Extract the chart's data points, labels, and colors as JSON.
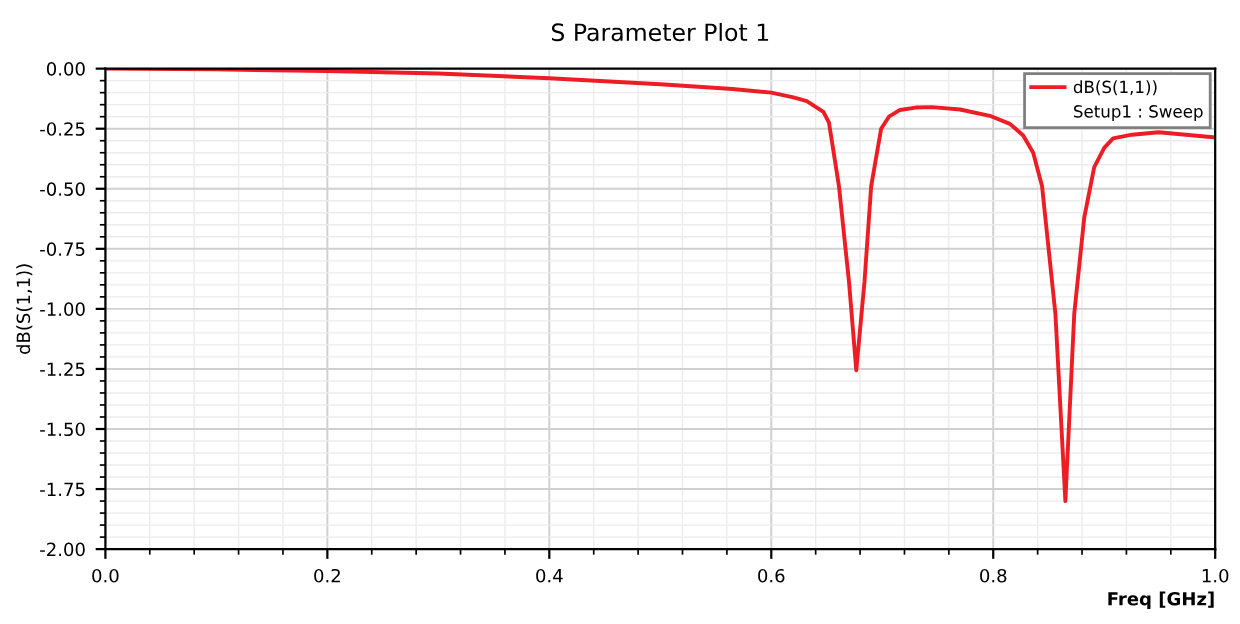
{
  "chart_data": {
    "type": "line",
    "title": "S Parameter Plot 1",
    "xlabel": "Freq [GHz]",
    "ylabel": "dB(S(1,1))",
    "x": [
      0,
      0.1,
      0.2,
      0.3,
      0.4,
      0.5,
      0.565,
      0.6,
      0.62,
      0.632,
      0.64,
      0.647,
      0.652,
      0.661,
      0.67,
      0.6766,
      0.684,
      0.69,
      0.699,
      0.706,
      0.716,
      0.73,
      0.745,
      0.77,
      0.798,
      0.815,
      0.827,
      0.836,
      0.844,
      0.856,
      0.865,
      0.873,
      0.882,
      0.891,
      0.9,
      0.908,
      0.925,
      0.949,
      0.999
    ],
    "series": [
      {
        "name": "dB(S(1,1))",
        "color": "#ee1c25",
        "values": [
          0,
          -0.003,
          -0.01,
          -0.02,
          -0.04,
          -0.065,
          -0.085,
          -0.1,
          -0.12,
          -0.135,
          -0.159,
          -0.18,
          -0.225,
          -0.49,
          -0.886,
          -1.256,
          -0.886,
          -0.49,
          -0.25,
          -0.2,
          -0.172,
          -0.162,
          -0.16,
          -0.17,
          -0.198,
          -0.23,
          -0.278,
          -0.35,
          -0.49,
          -1.02,
          -1.8,
          -1.02,
          -0.62,
          -0.41,
          -0.33,
          -0.29,
          -0.275,
          -0.265,
          -0.286
        ]
      }
    ],
    "annotations": [
      "Setup1 : Sweep"
    ],
    "xlim": [
      0,
      1
    ],
    "xticks": [
      {
        "value": 0,
        "label": "0.0"
      },
      0.2,
      0.4,
      0.6,
      0.8,
      {
        "value": 1,
        "label": "1.0"
      }
    ],
    "ylim": [
      -2,
      0
    ],
    "yticks": [
      {
        "value": -2,
        "label": "-2.00"
      },
      {
        "value": -1.75,
        "label": "-1.75"
      },
      {
        "value": -1.5,
        "label": "-1.50"
      },
      {
        "value": -1.25,
        "label": "-1.25"
      },
      {
        "value": -1,
        "label": "-1.00"
      },
      {
        "value": -0.75,
        "label": "-0.75"
      },
      {
        "value": -0.5,
        "label": "-0.50"
      },
      {
        "value": -0.25,
        "label": "-0.25"
      },
      {
        "value": 0,
        "label": "0.00"
      }
    ],
    "grid": true,
    "legend": "top right",
    "marker": "none",
    "line_style": "solid"
  }
}
